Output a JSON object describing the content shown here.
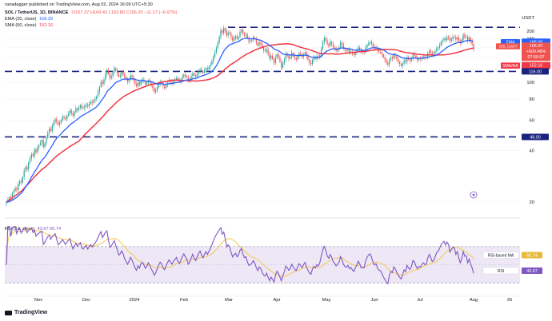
{
  "header": {
    "author": "ranadagger published on TradingView.com, Aug 02, 2024 16:09 UTC+5:30",
    "symbol_line": "SOL / TetherUS, 1D, BINANCE",
    "ohlc": "O167.37 H169.43 L152.80 C156.20 −11.17 (−6.67%)",
    "ema_label": "EMA (20, close)",
    "ema_value": "168.39",
    "sma_label": "SMA (50, close)",
    "sma_value": "152.16",
    "rsi_label": "RSI (14, close)",
    "rsi_values": "43.67 60.74"
  },
  "footer": {
    "brand": "TradingView"
  },
  "colors": {
    "candle_up": "#26a69a",
    "candle_down": "#ef5350",
    "ema": "#2962ff",
    "sma": "#f23645",
    "rsi_line": "#7e57c2",
    "rsi_ma": "#f2c94c",
    "rsi_band": "#ede7f6",
    "level_line": "#1a237e",
    "price_tag": "#ef5350"
  },
  "chart_data": {
    "type": "candlestick",
    "title": "SOL / TetherUS, 1D, BINANCE",
    "yscale": "log",
    "ylim": [
      17,
      250
    ],
    "unit_label": "USDT",
    "y_ticks": [
      20,
      40,
      60,
      80,
      100,
      120,
      140,
      160,
      180,
      200
    ],
    "x_tick_labels": [
      "Nov",
      "Dec",
      "2024",
      "Feb",
      "Mar",
      "Apr",
      "May",
      "Jun",
      "Jul",
      "Aug",
      "26"
    ],
    "horizontal_levels": [
      {
        "value": 210,
        "label": ""
      },
      {
        "value": 116,
        "label": "116.00"
      },
      {
        "value": 48,
        "label": "48.00"
      }
    ],
    "price_labels": {
      "ema": {
        "text": "EMA",
        "value": "168.39"
      },
      "last": {
        "text": "SOL USDT",
        "value": "156.20",
        "change": "+609.48%",
        "countdown": "07:50:07"
      },
      "sma": {
        "text": "SMA/MA",
        "value": "152.16"
      }
    },
    "closes": [
      20.0,
      20.5,
      21.3,
      21.0,
      22.5,
      23.2,
      24.0,
      23.5,
      25.5,
      26.5,
      26.0,
      28.0,
      30.5,
      32.0,
      31.0,
      34.0,
      36.0,
      38.0,
      37.0,
      40.5,
      39.0,
      41.5,
      43.0,
      44.5,
      46.0,
      42.0,
      44.0,
      47.5,
      51.0,
      53.5,
      52.0,
      56.0,
      58.5,
      61.0,
      59.0,
      56.5,
      58.0,
      60.5,
      63.0,
      62.0,
      61.0,
      64.0,
      66.0,
      68.5,
      66.0,
      64.0,
      67.0,
      70.5,
      69.0,
      71.0,
      73.5,
      71.0,
      70.5,
      73.0,
      74.0,
      72.5,
      75.0,
      77.0,
      76.0,
      78.5,
      80.0,
      83.0,
      88.0,
      94.0,
      101.0,
      98.0,
      104.0,
      112.0,
      118.0,
      112.0,
      106.0,
      109.0,
      115.0,
      121.0,
      117.0,
      113.0,
      108.0,
      110.0,
      115.0,
      112.0,
      107.0,
      104.0,
      101.0,
      105.0,
      110.0,
      107.0,
      103.0,
      98.0,
      95.0,
      100.0,
      97.0,
      102.0,
      104.0,
      101.0,
      97.0,
      99.0,
      103.0,
      100.0,
      96.0,
      93.0,
      88.0,
      90.0,
      94.0,
      98.0,
      101.0,
      99.0,
      95.0,
      93.0,
      97.0,
      100.0,
      103.0,
      101.0,
      99.0,
      102.0,
      104.0,
      106.0,
      103.0,
      101.0,
      104.0,
      108.0,
      111.0,
      109.0,
      107.0,
      103.0,
      105.0,
      109.0,
      113.0,
      110.0,
      108.0,
      112.0,
      116.0,
      119.0,
      116.0,
      114.0,
      118.0,
      121.0,
      119.0,
      123.0,
      127.0,
      133.0,
      141.0,
      150.0,
      160.0,
      170.0,
      185.0,
      202.0,
      195.0,
      208.0,
      200.0,
      188.0,
      196.0,
      192.0,
      184.0,
      176.0,
      182.0,
      186.0,
      180.0,
      185.0,
      198.0,
      203.0,
      194.0,
      188.0,
      190.0,
      181.0,
      174.0,
      175.0,
      178.0,
      183.0,
      179.0,
      171.0,
      165.0,
      171.0,
      168.0,
      160.0,
      154.0,
      152.0,
      156.0,
      147.0,
      138.0,
      143.0,
      137.0,
      130.0,
      140.0,
      146.0,
      141.0,
      132.0,
      122.0,
      130.0,
      136.0,
      147.0,
      143.0,
      138.0,
      141.0,
      149.0,
      144.0,
      139.0,
      136.0,
      142.0,
      148.0,
      145.0,
      141.0,
      146.0,
      150.0,
      142.0,
      136.0,
      130.0,
      128.0,
      136.0,
      140.0,
      137.0,
      142.0,
      140.0,
      145.0,
      157.0,
      172.0,
      182.0,
      176.0,
      168.0,
      164.0,
      173.0,
      168.0,
      161.0,
      158.0,
      153.0,
      156.0,
      160.0,
      171.0,
      166.0,
      158.0,
      154.0,
      153.0,
      156.0,
      150.0,
      152.0,
      148.0,
      145.0,
      150.0,
      154.0,
      160.0,
      156.0,
      150.0,
      151.0,
      150.0,
      160.0,
      166.0,
      170.0,
      172.0,
      168.0,
      162.0,
      158.0,
      160.0,
      154.0,
      151.0,
      150.0,
      146.0,
      140.0,
      136.0,
      130.0,
      127.0,
      135.0,
      140.0,
      138.0,
      145.0,
      142.0,
      137.0,
      132.0,
      128.0,
      125.0,
      129.0,
      135.0,
      132.0,
      140.0,
      136.0,
      134.0,
      138.0,
      146.0,
      144.0,
      139.0,
      135.0,
      138.0,
      137.0,
      140.0,
      142.0,
      140.0,
      141.0,
      148.0,
      153.0,
      150.0,
      146.0,
      147.0,
      152.0,
      158.0,
      160.0,
      165.0,
      172.0,
      176.0,
      180.0,
      177.0,
      184.0,
      182.0,
      175.0,
      180.0,
      185.0,
      184.0,
      178.0,
      183.0,
      176.0,
      170.0,
      177.0,
      190.0,
      184.0,
      185.0,
      175.0,
      182.0,
      174.0,
      167.0,
      156.2
    ],
    "series": [
      {
        "name": "EMA (20, close)",
        "last": 168.39
      },
      {
        "name": "SMA (50, close)",
        "last": 152.16
      }
    ],
    "rsi": {
      "label": "RSI (14, close)",
      "value": 43.67,
      "ma_value": 60.74,
      "ma_label": "RSI-based MA",
      "band": [
        30,
        70
      ]
    }
  }
}
